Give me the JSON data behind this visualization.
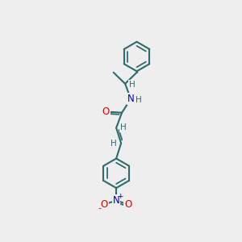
{
  "bg_color": "#eeeeee",
  "bond_color": "#2d6b6b",
  "bond_width": 1.5,
  "atom_colors": {
    "O": "#dd0000",
    "N": "#0000cc",
    "H": "#2d6b6b",
    "C": "#2d6b6b"
  },
  "font_size_atom": 8.5,
  "font_size_H": 7.5,
  "ring_r": 0.62,
  "bl": 0.68
}
